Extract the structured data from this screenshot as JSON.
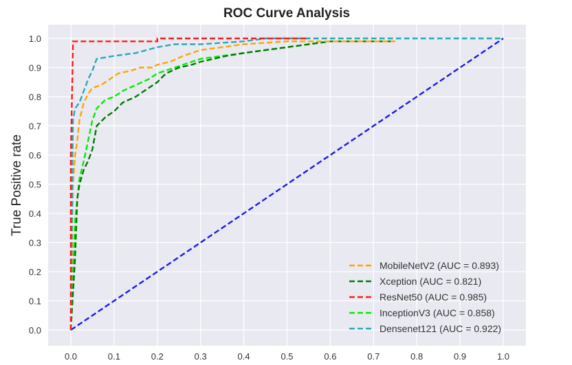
{
  "chart_data": {
    "type": "line",
    "title": "ROC Curve Analysis",
    "xlabel": "",
    "ylabel": "True Positive rate",
    "xlim": [
      -0.05,
      1.05
    ],
    "ylim": [
      -0.05,
      1.05
    ],
    "xticks": [
      "0.0",
      "0.1",
      "0.2",
      "0.3",
      "0.4",
      "0.5",
      "0.6",
      "0.7",
      "0.8",
      "0.9",
      "1.0"
    ],
    "yticks": [
      "0.0",
      "0.1",
      "0.2",
      "0.3",
      "0.4",
      "0.5",
      "0.6",
      "0.7",
      "0.8",
      "0.9",
      "1.0"
    ],
    "grid": true,
    "legend_position": "bottom-right",
    "series": [
      {
        "name": "MobileNetV2 (AUC = 0.893)",
        "color": "#ffa500",
        "dash": "dashed",
        "x": [
          0.0,
          0.005,
          0.01,
          0.015,
          0.02,
          0.03,
          0.04,
          0.05,
          0.07,
          0.09,
          0.1,
          0.11,
          0.14,
          0.16,
          0.19,
          0.2,
          0.23,
          0.26,
          0.3,
          0.4,
          0.5,
          0.6,
          0.7,
          0.75
        ],
        "y": [
          0.0,
          0.5,
          0.6,
          0.65,
          0.72,
          0.78,
          0.81,
          0.83,
          0.84,
          0.86,
          0.87,
          0.88,
          0.89,
          0.9,
          0.9,
          0.91,
          0.92,
          0.94,
          0.96,
          0.98,
          0.99,
          0.99,
          0.99,
          0.99
        ]
      },
      {
        "name": "Xception (AUC = 0.821)",
        "color": "#007a00",
        "dash": "dashed",
        "x": [
          0.0,
          0.01,
          0.015,
          0.02,
          0.03,
          0.04,
          0.05,
          0.06,
          0.08,
          0.1,
          0.12,
          0.15,
          0.17,
          0.2,
          0.22,
          0.25,
          0.28,
          0.3,
          0.33,
          0.36,
          0.4,
          0.5,
          0.6,
          0.7,
          0.75
        ],
        "y": [
          0.0,
          0.25,
          0.45,
          0.5,
          0.55,
          0.58,
          0.62,
          0.7,
          0.73,
          0.75,
          0.78,
          0.8,
          0.82,
          0.85,
          0.88,
          0.9,
          0.91,
          0.92,
          0.93,
          0.94,
          0.95,
          0.97,
          0.99,
          0.99,
          0.99
        ]
      },
      {
        "name": "ResNet50 (AUC = 0.985)",
        "color": "#ff1a1a",
        "dash": "dashed",
        "x": [
          0.0,
          0.0,
          0.005,
          0.005,
          0.2,
          0.2,
          0.55,
          0.55
        ],
        "y": [
          0.0,
          0.6,
          0.97,
          0.99,
          0.99,
          1.0,
          1.0,
          1.0
        ]
      },
      {
        "name": "InceptionV3 (AUC = 0.858)",
        "color": "#00ee00",
        "dash": "dashed",
        "x": [
          0.0,
          0.01,
          0.02,
          0.03,
          0.04,
          0.05,
          0.06,
          0.08,
          0.1,
          0.12,
          0.15,
          0.18,
          0.2,
          0.24,
          0.28,
          0.3,
          0.35,
          0.4,
          0.45,
          0.5,
          0.55,
          0.6
        ],
        "y": [
          0.0,
          0.38,
          0.52,
          0.58,
          0.65,
          0.72,
          0.76,
          0.79,
          0.8,
          0.82,
          0.84,
          0.86,
          0.88,
          0.9,
          0.92,
          0.93,
          0.94,
          0.95,
          0.96,
          0.97,
          0.98,
          0.99
        ]
      },
      {
        "name": "Densenet121 (AUC = 0.922)",
        "color": "#2aa8b5",
        "dash": "dashed",
        "x": [
          0.0,
          0.005,
          0.01,
          0.02,
          0.03,
          0.04,
          0.05,
          0.06,
          0.1,
          0.15,
          0.2,
          0.24,
          0.3,
          0.4,
          0.45,
          1.0
        ],
        "y": [
          0.0,
          0.72,
          0.76,
          0.78,
          0.82,
          0.86,
          0.89,
          0.93,
          0.94,
          0.95,
          0.97,
          0.98,
          0.98,
          0.99,
          1.0,
          1.0
        ]
      },
      {
        "name": "",
        "color": "#1a1aee",
        "dash": "dashed",
        "x": [
          0.0,
          1.0
        ],
        "y": [
          0.0,
          1.0
        ]
      }
    ]
  }
}
